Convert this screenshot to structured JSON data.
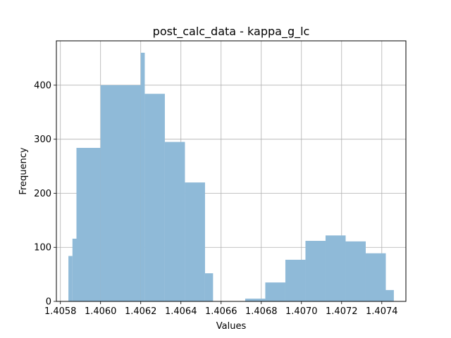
{
  "chart_data": {
    "type": "bar",
    "title": "post_calc_data - kappa_g_lc",
    "xlabel": "Values",
    "ylabel": "Frequency",
    "xlim": [
      1.40578,
      1.40752
    ],
    "ylim": [
      0,
      482
    ],
    "grid": true,
    "bar_color": "#8fbad8",
    "x_ticks": [
      "1.4058",
      "1.4060",
      "1.4062",
      "1.4064",
      "1.4066",
      "1.4068",
      "1.4070",
      "1.4072",
      "1.4074",
      ""
    ],
    "y_ticks": [
      "0",
      "100",
      "200",
      "300",
      "400"
    ],
    "bins": [
      {
        "x0": 1.40584,
        "x1": 1.40586,
        "count": 84
      },
      {
        "x0": 1.40586,
        "x1": 1.40588,
        "count": 116
      },
      {
        "x0": 1.40588,
        "x1": 1.406,
        "count": 284
      },
      {
        "x0": 1.406,
        "x1": 1.4062,
        "count": 400
      },
      {
        "x0": 1.4062,
        "x1": 1.40622,
        "count": 460
      },
      {
        "x0": 1.40622,
        "x1": 1.40632,
        "count": 384
      },
      {
        "x0": 1.40632,
        "x1": 1.40642,
        "count": 295
      },
      {
        "x0": 1.40642,
        "x1": 1.40652,
        "count": 220
      },
      {
        "x0": 1.40652,
        "x1": 1.40656,
        "count": 52
      },
      {
        "x0": 1.40656,
        "x1": 1.40662,
        "count": 0
      },
      {
        "x0": 1.40662,
        "x1": 1.40672,
        "count": 0
      },
      {
        "x0": 1.40672,
        "x1": 1.40682,
        "count": 5
      },
      {
        "x0": 1.40682,
        "x1": 1.40692,
        "count": 35
      },
      {
        "x0": 1.40692,
        "x1": 1.40702,
        "count": 77
      },
      {
        "x0": 1.40702,
        "x1": 1.40712,
        "count": 112
      },
      {
        "x0": 1.40712,
        "x1": 1.40722,
        "count": 122
      },
      {
        "x0": 1.40722,
        "x1": 1.40732,
        "count": 111
      },
      {
        "x0": 1.40732,
        "x1": 1.40742,
        "count": 89
      },
      {
        "x0": 1.40742,
        "x1": 1.40746,
        "count": 21
      }
    ]
  }
}
